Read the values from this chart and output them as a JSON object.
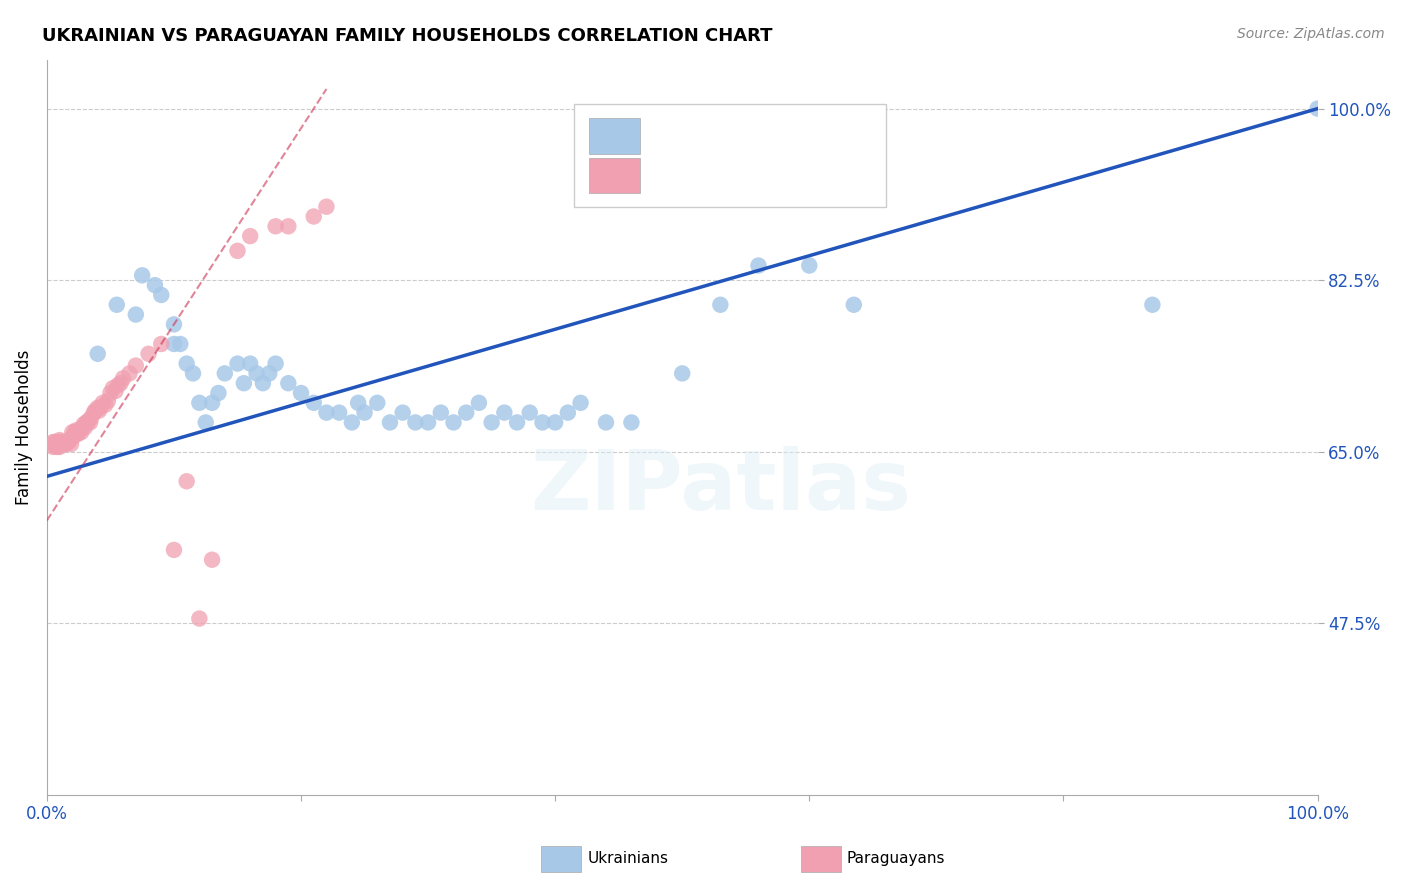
{
  "title": "UKRAINIAN VS PARAGUAYAN FAMILY HOUSEHOLDS CORRELATION CHART",
  "source": "Source: ZipAtlas.com",
  "ylabel": "Family Households",
  "xlim": [
    0.0,
    1.0
  ],
  "ylim": [
    0.3,
    1.05
  ],
  "ytick_positions": [
    0.475,
    0.65,
    0.825,
    1.0
  ],
  "yticklabels": [
    "47.5%",
    "65.0%",
    "82.5%",
    "100.0%"
  ],
  "blue_color": "#a8c8e8",
  "pink_color": "#f0a0b0",
  "blue_line_color": "#2255bb",
  "pink_line_color": "#cc3355",
  "text_color_blue": "#2255bb",
  "text_color_pink": "#cc3355",
  "watermark": "ZIPatlas",
  "blue_regression_x0": 0.0,
  "blue_regression_y0": 0.625,
  "blue_regression_x1": 1.0,
  "blue_regression_y1": 1.0,
  "pink_regression_x0": 0.0,
  "pink_regression_y0": 0.58,
  "pink_regression_x1": 0.22,
  "pink_regression_y1": 1.02,
  "blue_x": [
    0.04,
    0.055,
    0.07,
    0.075,
    0.085,
    0.09,
    0.1,
    0.1,
    0.105,
    0.11,
    0.115,
    0.12,
    0.125,
    0.13,
    0.135,
    0.14,
    0.15,
    0.155,
    0.16,
    0.165,
    0.17,
    0.175,
    0.18,
    0.19,
    0.2,
    0.21,
    0.22,
    0.23,
    0.24,
    0.245,
    0.25,
    0.26,
    0.27,
    0.28,
    0.29,
    0.3,
    0.31,
    0.32,
    0.33,
    0.34,
    0.35,
    0.36,
    0.37,
    0.38,
    0.39,
    0.4,
    0.41,
    0.42,
    0.44,
    0.46,
    0.5,
    0.53,
    0.56,
    0.6,
    0.635,
    0.87,
    1.0
  ],
  "blue_y": [
    0.75,
    0.8,
    0.79,
    0.83,
    0.82,
    0.81,
    0.78,
    0.76,
    0.76,
    0.74,
    0.73,
    0.7,
    0.68,
    0.7,
    0.71,
    0.73,
    0.74,
    0.72,
    0.74,
    0.73,
    0.72,
    0.73,
    0.74,
    0.72,
    0.71,
    0.7,
    0.69,
    0.69,
    0.68,
    0.7,
    0.69,
    0.7,
    0.68,
    0.69,
    0.68,
    0.68,
    0.69,
    0.68,
    0.69,
    0.7,
    0.68,
    0.69,
    0.68,
    0.69,
    0.68,
    0.68,
    0.69,
    0.7,
    0.68,
    0.68,
    0.73,
    0.8,
    0.84,
    0.84,
    0.8,
    0.8,
    1.0
  ],
  "pink_x": [
    0.005,
    0.005,
    0.006,
    0.006,
    0.007,
    0.008,
    0.008,
    0.009,
    0.01,
    0.01,
    0.01,
    0.01,
    0.011,
    0.012,
    0.012,
    0.013,
    0.014,
    0.015,
    0.015,
    0.016,
    0.017,
    0.018,
    0.019,
    0.02,
    0.02,
    0.021,
    0.022,
    0.023,
    0.024,
    0.025,
    0.026,
    0.027,
    0.028,
    0.029,
    0.03,
    0.031,
    0.032,
    0.033,
    0.034,
    0.035,
    0.037,
    0.038,
    0.04,
    0.041,
    0.042,
    0.044,
    0.046,
    0.048,
    0.05,
    0.052,
    0.054,
    0.056,
    0.058,
    0.06,
    0.065,
    0.07,
    0.08,
    0.09,
    0.1,
    0.11,
    0.12,
    0.13,
    0.15,
    0.16,
    0.18,
    0.19,
    0.21,
    0.22
  ],
  "pink_y": [
    0.66,
    0.655,
    0.657,
    0.66,
    0.656,
    0.655,
    0.658,
    0.66,
    0.655,
    0.657,
    0.66,
    0.662,
    0.66,
    0.66,
    0.658,
    0.66,
    0.658,
    0.658,
    0.66,
    0.66,
    0.66,
    0.662,
    0.658,
    0.665,
    0.67,
    0.666,
    0.67,
    0.672,
    0.668,
    0.67,
    0.672,
    0.67,
    0.675,
    0.678,
    0.675,
    0.68,
    0.68,
    0.682,
    0.68,
    0.685,
    0.69,
    0.692,
    0.695,
    0.692,
    0.695,
    0.7,
    0.698,
    0.702,
    0.71,
    0.715,
    0.712,
    0.718,
    0.72,
    0.725,
    0.73,
    0.738,
    0.75,
    0.76,
    0.55,
    0.62,
    0.48,
    0.54,
    0.855,
    0.87,
    0.88,
    0.88,
    0.89,
    0.9
  ]
}
